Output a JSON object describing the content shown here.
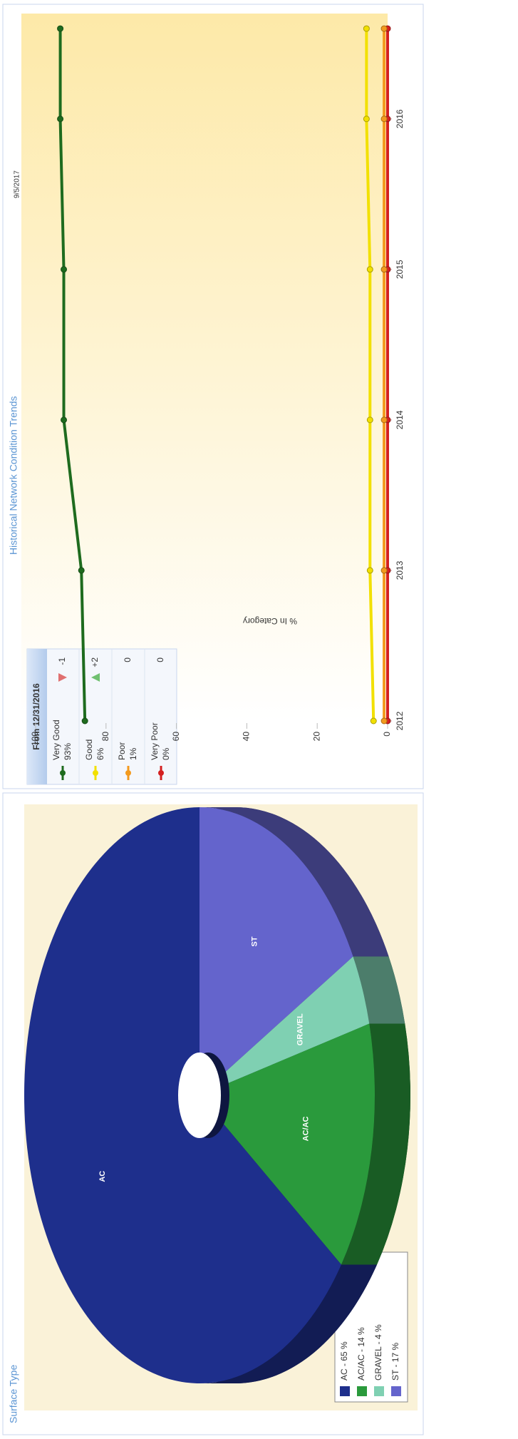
{
  "chart_data": [
    {
      "type": "pie",
      "title": "Surface Type",
      "categories": [
        "ST",
        "GRAVEL",
        "AC/AC",
        "AC"
      ],
      "values": [
        17,
        4,
        14,
        65
      ],
      "colors": [
        "#6464cc",
        "#7fd0b2",
        "#2a9a3c",
        "#1e2f8c"
      ],
      "legend_labels": [
        "ST - 17 %",
        "GRAVEL - 4 %",
        "AC/AC - 14 %",
        "AC - 65 %"
      ]
    },
    {
      "type": "line",
      "title": "Historical Network Condition Trends",
      "date_label": "9/5/2017",
      "y_label": "% In Category",
      "x": [
        2012,
        2013,
        2014,
        2015,
        2016,
        2016.6
      ],
      "xlim": [
        2012,
        2016.7
      ],
      "xticks": [
        2012,
        2013,
        2014,
        2015,
        2016
      ],
      "ylim": [
        0,
        100
      ],
      "yticks": [
        0,
        20,
        40,
        60,
        80,
        100
      ],
      "series": [
        {
          "name": "Very Good",
          "color": "#1e6b1e",
          "values": [
            86,
            87,
            92,
            92,
            93,
            93
          ]
        },
        {
          "name": "Good",
          "color": "#f2e000",
          "values": [
            4,
            5,
            5,
            5,
            6,
            6
          ]
        },
        {
          "name": "Poor",
          "color": "#f39a1e",
          "values": [
            1,
            1,
            1,
            1,
            1,
            1
          ]
        },
        {
          "name": "Very Poor",
          "color": "#d42020",
          "values": [
            0,
            0,
            0,
            0,
            0,
            0
          ]
        }
      ]
    }
  ],
  "condition_table": {
    "header": "From 12/31/2016",
    "rows": [
      {
        "percent": "93%",
        "change": "-1"
      },
      {
        "percent": "6%",
        "change": "+2"
      },
      {
        "percent": "1%",
        "change": "0"
      },
      {
        "percent": "0%",
        "change": "0"
      }
    ]
  }
}
